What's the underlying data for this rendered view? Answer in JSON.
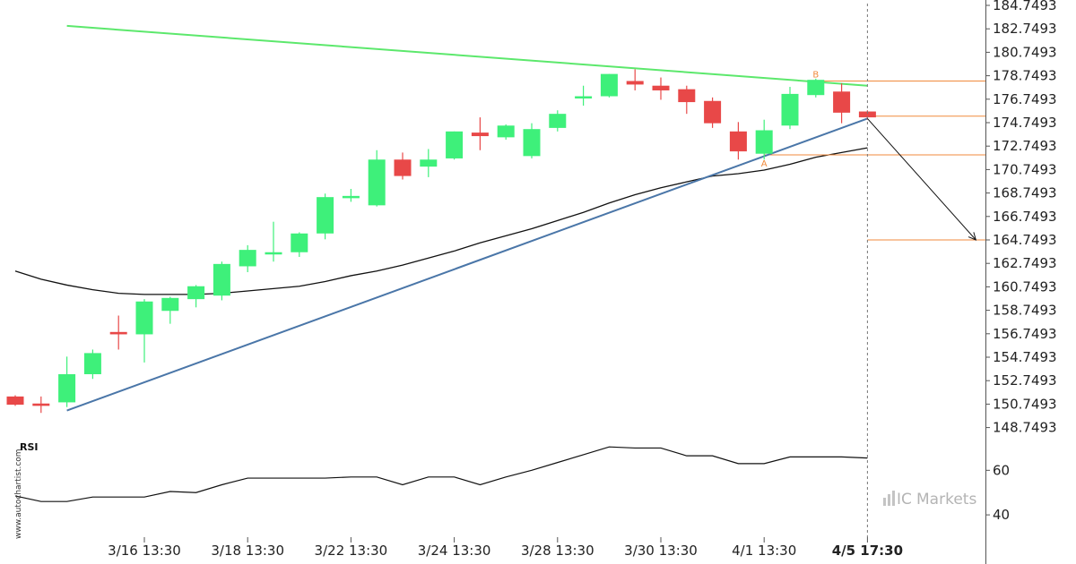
{
  "chart_data": {
    "type": "candlestick",
    "watermark": "www.autochartist.com",
    "brand": {
      "ic": "IC",
      "markets": "Markets"
    },
    "colors": {
      "up": "#3ef07a",
      "down": "#e84848",
      "resistance": "#5ce86c",
      "support": "#4a76a8",
      "ma": "#111111",
      "level": "#f08a3c",
      "forecast": "#111111"
    },
    "y_ticks": [
      "184.7493",
      "182.7493",
      "180.7493",
      "178.7493",
      "176.7493",
      "174.7493",
      "172.7493",
      "170.7493",
      "168.7493",
      "166.7493",
      "164.7493",
      "162.7493",
      "160.7493",
      "158.7493",
      "156.7493",
      "154.7493",
      "152.7493",
      "150.7493",
      "148.7493"
    ],
    "ylim": [
      146.7,
      185.0
    ],
    "x_ticks": [
      {
        "label": "3/16 13:30",
        "index": 5
      },
      {
        "label": "3/18 13:30",
        "index": 9
      },
      {
        "label": "3/22 13:30",
        "index": 13
      },
      {
        "label": "3/24 13:30",
        "index": 17
      },
      {
        "label": "3/28 13:30",
        "index": 21
      },
      {
        "label": "3/30 13:30",
        "index": 25
      },
      {
        "label": "4/1 13:30",
        "index": 29
      },
      {
        "label": "4/5 17:30",
        "index": 33,
        "bold": true
      }
    ],
    "candles": [
      {
        "o": 151.4,
        "h": 151.5,
        "l": 150.6,
        "c": 150.7
      },
      {
        "o": 150.8,
        "h": 151.4,
        "l": 150.0,
        "c": 150.6
      },
      {
        "o": 150.9,
        "h": 154.8,
        "l": 150.5,
        "c": 153.3
      },
      {
        "o": 153.3,
        "h": 155.4,
        "l": 152.9,
        "c": 155.1
      },
      {
        "o": 156.9,
        "h": 158.3,
        "l": 155.4,
        "c": 156.7
      },
      {
        "o": 156.7,
        "h": 159.7,
        "l": 154.3,
        "c": 159.5
      },
      {
        "o": 158.7,
        "h": 159.9,
        "l": 157.6,
        "c": 159.8
      },
      {
        "o": 159.7,
        "h": 160.9,
        "l": 159.0,
        "c": 160.8
      },
      {
        "o": 160.0,
        "h": 162.9,
        "l": 159.6,
        "c": 162.7
      },
      {
        "o": 162.5,
        "h": 164.3,
        "l": 162.0,
        "c": 163.9
      },
      {
        "o": 163.7,
        "h": 166.3,
        "l": 162.9,
        "c": 163.7
      },
      {
        "o": 163.7,
        "h": 165.4,
        "l": 163.3,
        "c": 165.3
      },
      {
        "o": 165.3,
        "h": 168.7,
        "l": 164.8,
        "c": 168.4
      },
      {
        "o": 168.4,
        "h": 169.1,
        "l": 168.0,
        "c": 168.5
      },
      {
        "o": 167.7,
        "h": 172.4,
        "l": 167.6,
        "c": 171.6
      },
      {
        "o": 171.6,
        "h": 172.2,
        "l": 169.9,
        "c": 170.2
      },
      {
        "o": 171.0,
        "h": 172.5,
        "l": 170.1,
        "c": 171.6
      },
      {
        "o": 171.7,
        "h": 174.0,
        "l": 171.6,
        "c": 174.0
      },
      {
        "o": 173.9,
        "h": 175.2,
        "l": 172.4,
        "c": 173.6
      },
      {
        "o": 173.5,
        "h": 174.6,
        "l": 173.3,
        "c": 174.5
      },
      {
        "o": 171.9,
        "h": 174.7,
        "l": 171.7,
        "c": 174.2
      },
      {
        "o": 174.3,
        "h": 175.8,
        "l": 174.0,
        "c": 175.5
      },
      {
        "o": 176.9,
        "h": 177.9,
        "l": 176.2,
        "c": 177.0
      },
      {
        "o": 177.0,
        "h": 178.9,
        "l": 176.9,
        "c": 178.9
      },
      {
        "o": 178.3,
        "h": 179.3,
        "l": 177.5,
        "c": 178.0
      },
      {
        "o": 177.9,
        "h": 178.6,
        "l": 176.7,
        "c": 177.5
      },
      {
        "o": 177.6,
        "h": 177.9,
        "l": 175.5,
        "c": 176.5
      },
      {
        "o": 176.6,
        "h": 176.9,
        "l": 174.3,
        "c": 174.7
      },
      {
        "o": 174.0,
        "h": 174.8,
        "l": 171.6,
        "c": 172.3
      },
      {
        "o": 172.1,
        "h": 175.0,
        "l": 171.6,
        "c": 174.1
      },
      {
        "o": 174.5,
        "h": 177.8,
        "l": 174.2,
        "c": 177.2
      },
      {
        "o": 177.1,
        "h": 178.5,
        "l": 176.9,
        "c": 178.4
      },
      {
        "o": 177.4,
        "h": 178.1,
        "l": 174.7,
        "c": 175.6
      },
      {
        "o": 175.7,
        "h": 175.8,
        "l": 175.0,
        "c": 175.2
      }
    ],
    "moving_average": [
      162.1,
      161.4,
      160.9,
      160.5,
      160.2,
      160.1,
      160.1,
      160.1,
      160.2,
      160.4,
      160.6,
      160.8,
      161.2,
      161.7,
      162.1,
      162.6,
      163.2,
      163.8,
      164.5,
      165.1,
      165.7,
      166.4,
      167.1,
      167.9,
      168.6,
      169.2,
      169.7,
      170.2,
      170.4,
      170.7,
      171.2,
      171.8,
      172.2,
      172.6
    ],
    "resistance_line": {
      "from": {
        "index": 2,
        "value": 183.0
      },
      "to": {
        "index": 33,
        "value": 177.9
      }
    },
    "support_line": {
      "from": {
        "index": 2,
        "value": 150.2
      },
      "to": {
        "index": 33,
        "value": 175.1
      }
    },
    "levels": [
      {
        "value": 178.3,
        "from_index": 31
      },
      {
        "value": 175.3,
        "from_index": 33
      },
      {
        "value": 172.0,
        "from_index": 29
      },
      {
        "value": 164.75,
        "from_index": 33
      }
    ],
    "point_labels": [
      {
        "text": "B",
        "index": 31,
        "value": 178.9
      },
      {
        "text": "A",
        "index": 29,
        "value": 171.3
      }
    ],
    "forecast_arrow": {
      "from": {
        "index": 33,
        "value": 175.1
      },
      "to": {
        "index": 37.2,
        "value": 164.75
      }
    },
    "current_index": 33,
    "rsi": {
      "label": "RSI",
      "y_ticks": [
        "60",
        "40"
      ],
      "range": [
        30,
        75
      ],
      "values": [
        48.5,
        46,
        46,
        48,
        48,
        48,
        50.5,
        50,
        53.5,
        56.5,
        56.5,
        56.5,
        56.5,
        57,
        57,
        53.5,
        57,
        57,
        53.5,
        57,
        60,
        63.5,
        67,
        70.5,
        70,
        70,
        66.5,
        66.5,
        63,
        63,
        66,
        66,
        66,
        65.5
      ]
    }
  }
}
